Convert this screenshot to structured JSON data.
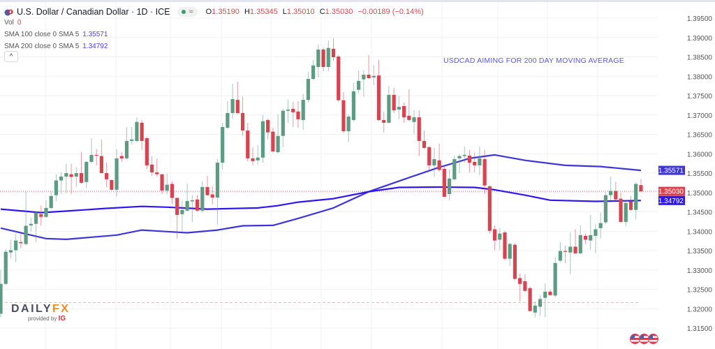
{
  "header": {
    "title": "U.S. Dollar / Canadian Dollar · 1D · ICE",
    "status_icons": [
      "market-open-dot-icon",
      "wave-icon"
    ],
    "open_label": "O",
    "open": "1.35190",
    "high_label": "H",
    "high": "1.35345",
    "low_label": "L",
    "low": "1.35010",
    "close_label": "C",
    "close": "1.35030",
    "change": "−0.00189 (−0.14%)"
  },
  "legend": {
    "vol_label": "Vol",
    "vol_value": "0",
    "sma100_label": "SMA 100 close 0 SMA 5",
    "sma100_value": "1.35571",
    "sma200_label": "SMA 200 close 0 SMA 5",
    "sma200_value": "1.34792",
    "collapse_icon": "chevron-up-icon",
    "collapse_glyph": "^"
  },
  "annotation": "USDCAD AIMING FOR 200 DAY MOVING AVERAGE",
  "logo": {
    "brand_a": "DAILY",
    "brand_b": "FX",
    "provided": "provided by",
    "ig": "IG"
  },
  "colors": {
    "up": "#5b9c82",
    "down": "#d9434f",
    "sma100": "#3d35d6",
    "sma200": "#2f16f0",
    "last_price": "#d9434f",
    "annotation": "#5a55f0"
  },
  "chart_data": {
    "type": "candlestick",
    "title": "",
    "xlabel": "",
    "ylabel": "",
    "ylim": [
      1.3125,
      1.3975
    ],
    "y_ticks": [
      "1.39500",
      "1.39000",
      "1.38500",
      "1.38000",
      "1.37500",
      "1.37000",
      "1.36500",
      "1.36000",
      "1.35500",
      "1.35000",
      "1.34500",
      "1.34000",
      "1.33500",
      "1.33000",
      "1.32500",
      "1.32000",
      "1.31500"
    ],
    "grid": true,
    "ohlc": [
      [
        1.3187,
        1.33,
        1.3178,
        1.3264
      ],
      [
        1.3264,
        1.3354,
        1.3261,
        1.3347
      ],
      [
        1.3345,
        1.3378,
        1.3329,
        1.3351
      ],
      [
        1.3351,
        1.3394,
        1.332,
        1.3376
      ],
      [
        1.3372,
        1.3394,
        1.3356,
        1.3369
      ],
      [
        1.3367,
        1.3502,
        1.3363,
        1.3414
      ],
      [
        1.3415,
        1.3435,
        1.3399,
        1.3419
      ],
      [
        1.3419,
        1.3451,
        1.3372,
        1.3448
      ],
      [
        1.3444,
        1.3466,
        1.3414,
        1.3437
      ],
      [
        1.3437,
        1.348,
        1.3435,
        1.346
      ],
      [
        1.346,
        1.3502,
        1.3457,
        1.3491
      ],
      [
        1.3493,
        1.3547,
        1.3478,
        1.3531
      ],
      [
        1.3531,
        1.3552,
        1.3496,
        1.3541
      ],
      [
        1.3541,
        1.3574,
        1.3498,
        1.355
      ],
      [
        1.3547,
        1.3574,
        1.3496,
        1.354
      ],
      [
        1.3541,
        1.3565,
        1.3514,
        1.355
      ],
      [
        1.355,
        1.3604,
        1.3522,
        1.3525
      ],
      [
        1.3527,
        1.3581,
        1.3511,
        1.3579
      ],
      [
        1.3579,
        1.364,
        1.3576,
        1.3597
      ],
      [
        1.3597,
        1.3612,
        1.357,
        1.3595
      ],
      [
        1.3594,
        1.3637,
        1.3549,
        1.355
      ],
      [
        1.355,
        1.3577,
        1.3514,
        1.3534
      ],
      [
        1.3532,
        1.3534,
        1.3505,
        1.3507
      ],
      [
        1.3507,
        1.3612,
        1.3489,
        1.3588
      ],
      [
        1.3594,
        1.3604,
        1.3579,
        1.3588
      ],
      [
        1.3588,
        1.3669,
        1.3585,
        1.3633
      ],
      [
        1.3633,
        1.3669,
        1.3624,
        1.3637
      ],
      [
        1.3633,
        1.3694,
        1.363,
        1.3682
      ],
      [
        1.368,
        1.3687,
        1.361,
        1.3633
      ],
      [
        1.364,
        1.3644,
        1.3561,
        1.357
      ],
      [
        1.3572,
        1.3594,
        1.3543,
        1.3552
      ],
      [
        1.3552,
        1.3588,
        1.3541,
        1.3547
      ],
      [
        1.3547,
        1.3547,
        1.3496,
        1.3505
      ],
      [
        1.3505,
        1.3549,
        1.3496,
        1.352
      ],
      [
        1.3522,
        1.3529,
        1.3471,
        1.3486
      ],
      [
        1.3486,
        1.3486,
        1.3381,
        1.3442
      ],
      [
        1.3444,
        1.3478,
        1.3397,
        1.3455
      ],
      [
        1.3453,
        1.3523,
        1.3451,
        1.3478
      ],
      [
        1.3477,
        1.3493,
        1.3424,
        1.348
      ],
      [
        1.3482,
        1.3493,
        1.345,
        1.3453
      ],
      [
        1.3453,
        1.3529,
        1.3448,
        1.3514
      ],
      [
        1.3514,
        1.3543,
        1.3491,
        1.3493
      ],
      [
        1.3495,
        1.3516,
        1.3469,
        1.3487
      ],
      [
        1.3487,
        1.3586,
        1.3417,
        1.3577
      ],
      [
        1.3577,
        1.368,
        1.3559,
        1.3669
      ],
      [
        1.3667,
        1.3736,
        1.3664,
        1.3705
      ],
      [
        1.3705,
        1.3781,
        1.3691,
        1.3741
      ],
      [
        1.3739,
        1.3786,
        1.3702,
        1.3705
      ],
      [
        1.3705,
        1.3747,
        1.3646,
        1.366
      ],
      [
        1.366,
        1.368,
        1.3581,
        1.3588
      ],
      [
        1.3588,
        1.3617,
        1.357,
        1.3581
      ],
      [
        1.3583,
        1.3622,
        1.3572,
        1.359
      ],
      [
        1.359,
        1.37,
        1.3577,
        1.3684
      ],
      [
        1.3687,
        1.3691,
        1.3637,
        1.3655
      ],
      [
        1.3657,
        1.3667,
        1.3603,
        1.3606
      ],
      [
        1.3604,
        1.3702,
        1.3601,
        1.3646
      ],
      [
        1.3646,
        1.3716,
        1.3617,
        1.3711
      ],
      [
        1.3711,
        1.3739,
        1.368,
        1.3714
      ],
      [
        1.3716,
        1.3734,
        1.3669,
        1.3707
      ],
      [
        1.3709,
        1.3736,
        1.3667,
        1.3689
      ],
      [
        1.3687,
        1.3754,
        1.3662,
        1.3739
      ],
      [
        1.3739,
        1.3811,
        1.3732,
        1.3793
      ],
      [
        1.3793,
        1.3842,
        1.379,
        1.3828
      ],
      [
        1.3824,
        1.3882,
        1.3797,
        1.3869
      ],
      [
        1.3869,
        1.3874,
        1.3813,
        1.3824
      ],
      [
        1.3824,
        1.3892,
        1.3813,
        1.3873
      ],
      [
        1.3871,
        1.3898,
        1.384,
        1.3849
      ],
      [
        1.3851,
        1.3855,
        1.3734,
        1.3738
      ],
      [
        1.3738,
        1.3759,
        1.3653,
        1.3658
      ],
      [
        1.3658,
        1.3702,
        1.363,
        1.3696
      ],
      [
        1.3687,
        1.3783,
        1.3684,
        1.3761
      ],
      [
        1.3765,
        1.3815,
        1.3756,
        1.3788
      ],
      [
        1.3792,
        1.3815,
        1.3747,
        1.3804
      ],
      [
        1.3804,
        1.3855,
        1.3793,
        1.3795
      ],
      [
        1.3797,
        1.3829,
        1.3777,
        1.3801
      ],
      [
        1.3802,
        1.3842,
        1.3684,
        1.3687
      ],
      [
        1.3687,
        1.3709,
        1.3655,
        1.368
      ],
      [
        1.368,
        1.3775,
        1.3678,
        1.3752
      ],
      [
        1.3752,
        1.377,
        1.3705,
        1.3712
      ],
      [
        1.3714,
        1.375,
        1.3689,
        1.3721
      ],
      [
        1.3723,
        1.3732,
        1.368,
        1.3694
      ],
      [
        1.3698,
        1.3766,
        1.3684,
        1.3687
      ],
      [
        1.3682,
        1.3712,
        1.3651,
        1.3694
      ],
      [
        1.3694,
        1.3712,
        1.3594,
        1.3633
      ],
      [
        1.3633,
        1.366,
        1.3612,
        1.3615
      ],
      [
        1.3617,
        1.3619,
        1.3559,
        1.357
      ],
      [
        1.357,
        1.3615,
        1.3541,
        1.3586
      ],
      [
        1.3583,
        1.3626,
        1.3554,
        1.3558
      ],
      [
        1.3561,
        1.357,
        1.3487,
        1.3489
      ],
      [
        1.3496,
        1.3559,
        1.348,
        1.3536
      ],
      [
        1.3534,
        1.3595,
        1.3531,
        1.3586
      ],
      [
        1.3588,
        1.3599,
        1.355,
        1.3594
      ],
      [
        1.3594,
        1.3619,
        1.3577,
        1.3597
      ],
      [
        1.3595,
        1.361,
        1.3552,
        1.3577
      ],
      [
        1.3579,
        1.3603,
        1.3552,
        1.357
      ],
      [
        1.357,
        1.3619,
        1.3545,
        1.3588
      ],
      [
        1.3586,
        1.361,
        1.3496,
        1.3518
      ],
      [
        1.3516,
        1.3518,
        1.3394,
        1.3401
      ],
      [
        1.3405,
        1.3415,
        1.3351,
        1.3376
      ],
      [
        1.3378,
        1.3408,
        1.3351,
        1.3394
      ],
      [
        1.3397,
        1.3401,
        1.3325,
        1.3329
      ],
      [
        1.3329,
        1.337,
        1.3311,
        1.3367
      ],
      [
        1.3365,
        1.337,
        1.3273,
        1.3277
      ],
      [
        1.3279,
        1.3291,
        1.3219,
        1.3264
      ],
      [
        1.3271,
        1.3289,
        1.3243,
        1.3246
      ],
      [
        1.3253,
        1.3257,
        1.3192,
        1.3194
      ],
      [
        1.319,
        1.3219,
        1.3178,
        1.3208
      ],
      [
        1.3205,
        1.3235,
        1.3181,
        1.3225
      ],
      [
        1.3228,
        1.3266,
        1.3178,
        1.3244
      ],
      [
        1.3244,
        1.325,
        1.3234,
        1.3235
      ],
      [
        1.3234,
        1.3334,
        1.3229,
        1.3318
      ],
      [
        1.3324,
        1.3372,
        1.332,
        1.3349
      ],
      [
        1.3349,
        1.3363,
        1.3318,
        1.3347
      ],
      [
        1.3345,
        1.3397,
        1.3289,
        1.336
      ],
      [
        1.336,
        1.3405,
        1.334,
        1.3343
      ],
      [
        1.3343,
        1.3415,
        1.334,
        1.339
      ],
      [
        1.3388,
        1.3394,
        1.3367,
        1.3378
      ],
      [
        1.3376,
        1.3442,
        1.3352,
        1.339
      ],
      [
        1.3388,
        1.3419,
        1.3343,
        1.3405
      ],
      [
        1.3408,
        1.3448,
        1.3381,
        1.3421
      ],
      [
        1.3423,
        1.35,
        1.3419,
        1.3493
      ],
      [
        1.3493,
        1.3541,
        1.348,
        1.3504
      ],
      [
        1.3504,
        1.3527,
        1.348,
        1.3482
      ],
      [
        1.3484,
        1.35,
        1.3421,
        1.3424
      ],
      [
        1.3424,
        1.348,
        1.3414,
        1.3473
      ],
      [
        1.3477,
        1.3491,
        1.3453,
        1.3455
      ],
      [
        1.3455,
        1.3527,
        1.343,
        1.3522
      ],
      [
        1.3519,
        1.35345,
        1.3501,
        1.3503
      ]
    ],
    "series": [
      {
        "name": "SMA 100",
        "last": "1.35571",
        "points": [
          [
            0,
            1.3408
          ],
          [
            9,
            1.3381
          ],
          [
            13,
            1.3379
          ],
          [
            23,
            1.339
          ],
          [
            28,
            1.3403
          ],
          [
            33,
            1.3399
          ],
          [
            37,
            1.3396
          ],
          [
            43,
            1.3403
          ],
          [
            48,
            1.3414
          ],
          [
            54,
            1.3415
          ],
          [
            59,
            1.3433
          ],
          [
            66,
            1.346
          ],
          [
            73,
            1.3502
          ],
          [
            80,
            1.3534
          ],
          [
            87,
            1.3565
          ],
          [
            93,
            1.3588
          ],
          [
            98,
            1.3597
          ],
          [
            104,
            1.3583
          ],
          [
            112,
            1.357
          ],
          [
            119,
            1.3567
          ],
          [
            127,
            1.35571
          ]
        ]
      },
      {
        "name": "SMA 200",
        "last": "1.34792",
        "points": [
          [
            0,
            1.3457
          ],
          [
            8,
            1.3448
          ],
          [
            12,
            1.3451
          ],
          [
            21,
            1.3459
          ],
          [
            28,
            1.3464
          ],
          [
            33,
            1.3462
          ],
          [
            41,
            1.3457
          ],
          [
            51,
            1.346
          ],
          [
            55,
            1.3466
          ],
          [
            59,
            1.3475
          ],
          [
            66,
            1.3484
          ],
          [
            73,
            1.3502
          ],
          [
            79,
            1.3513
          ],
          [
            87,
            1.3514
          ],
          [
            94,
            1.3513
          ],
          [
            98,
            1.3507
          ],
          [
            104,
            1.3493
          ],
          [
            109,
            1.348
          ],
          [
            118,
            1.3477
          ],
          [
            127,
            1.34792
          ]
        ]
      }
    ],
    "last_price": "1.35030",
    "reference_line": 1.3216
  }
}
